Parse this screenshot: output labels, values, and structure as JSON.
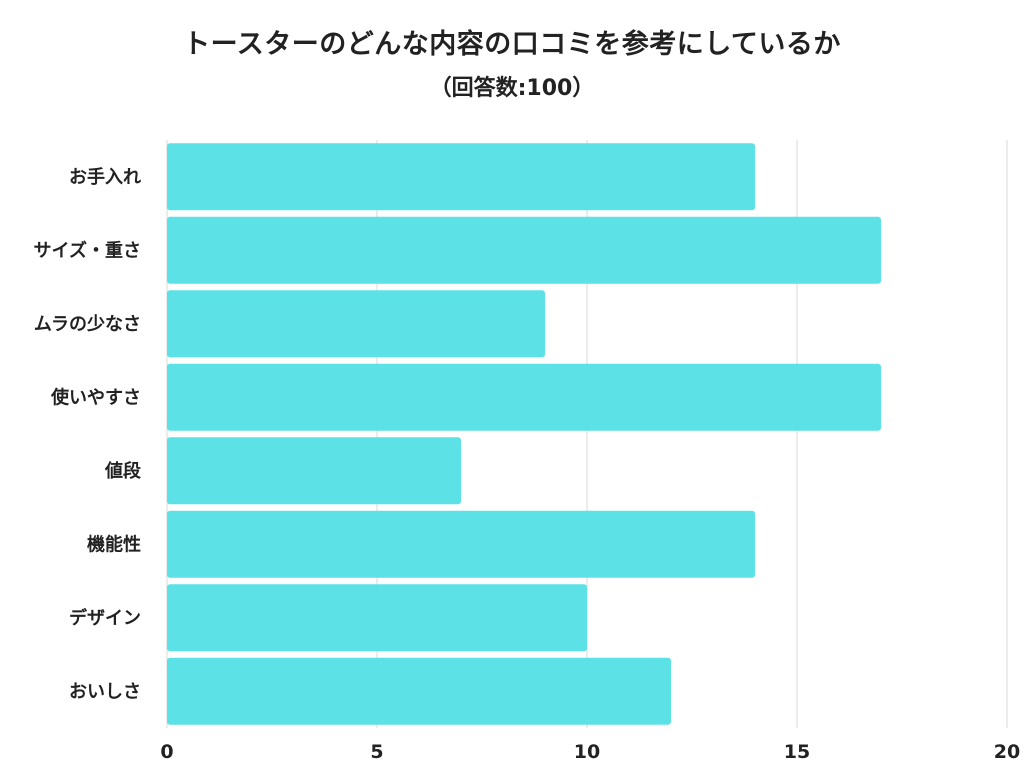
{
  "chart_data": {
    "type": "bar",
    "orientation": "horizontal",
    "title": "トースターのどんな内容の口コミを参考にしているか",
    "subtitle": "（回答数:100）",
    "categories": [
      "お手入れ",
      "サイズ・重さ",
      "ムラの少なさ",
      "使いやすさ",
      "値段",
      "機能性",
      "デザイン",
      "おいしさ"
    ],
    "values": [
      14,
      17,
      9,
      17,
      7,
      14,
      10,
      12
    ],
    "xlim": [
      0,
      20
    ],
    "xticks": [
      "0",
      "5",
      "10",
      "15",
      "20"
    ],
    "xlabel": "",
    "ylabel": "",
    "grid": true,
    "bar_color": "#5ce1e6",
    "grid_color": "#d9d9d9"
  }
}
